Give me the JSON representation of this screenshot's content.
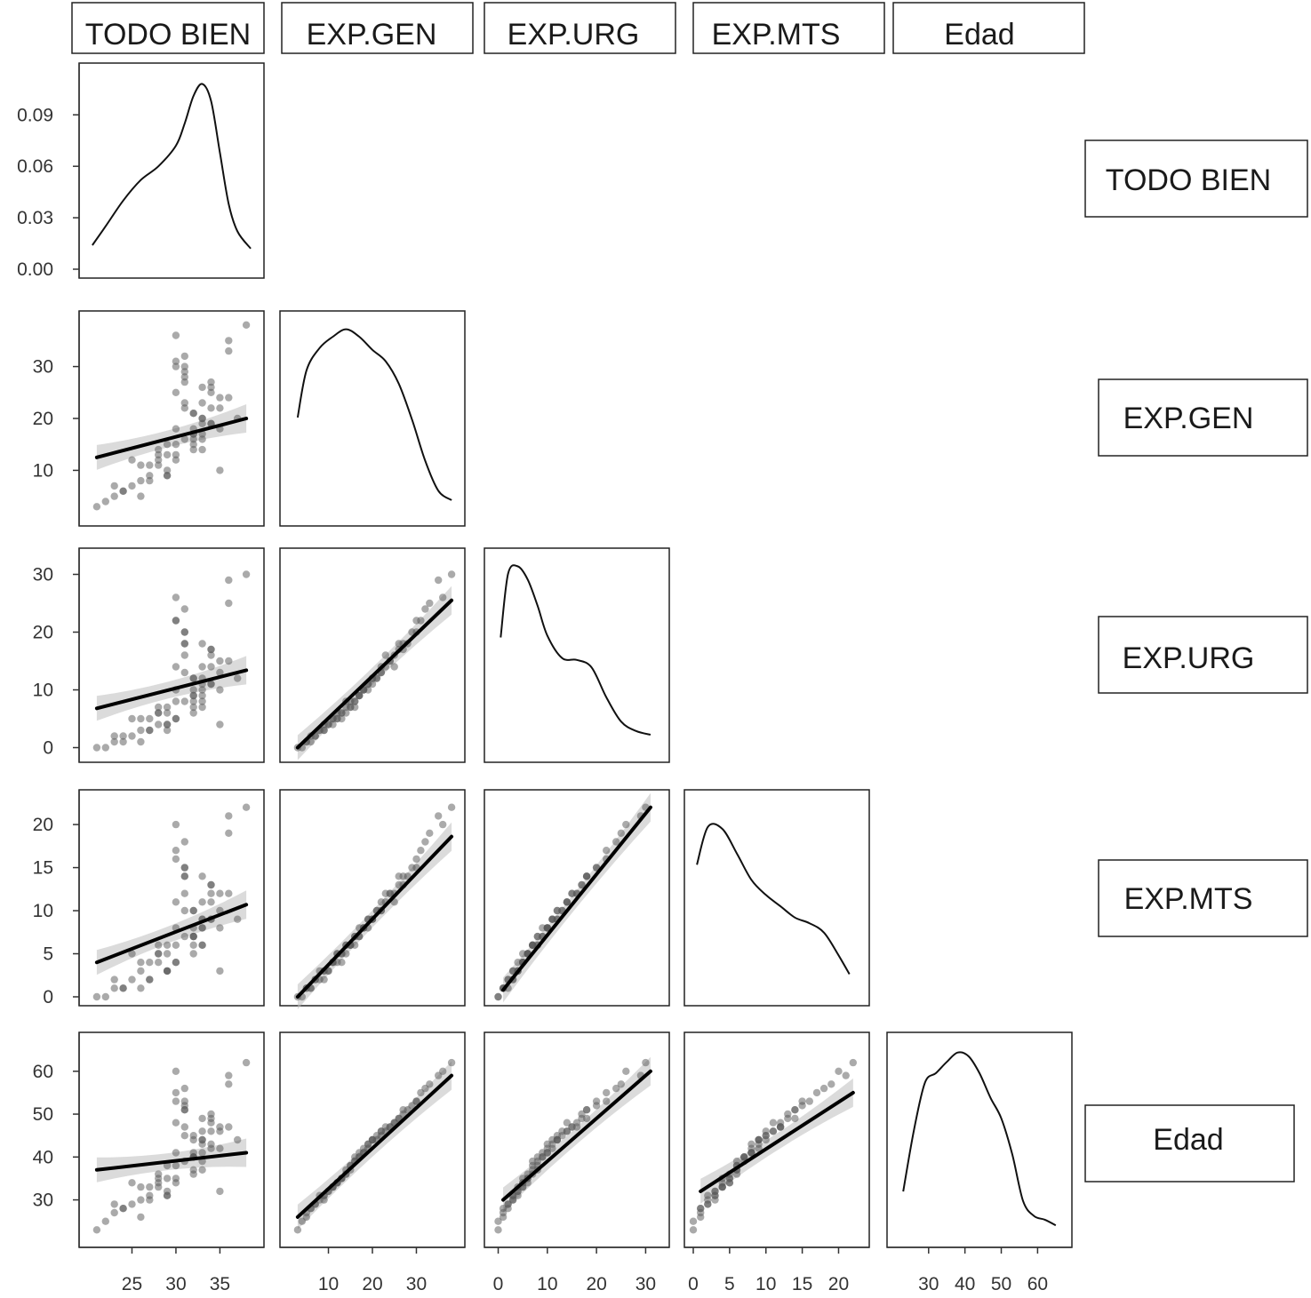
{
  "chart_data": {
    "type": "scatter",
    "variables": [
      "TODO BIEN",
      "EXP.GEN",
      "EXP.URG",
      "EXP.MTS",
      "Edad"
    ],
    "layout": "pairs-matrix-lower",
    "diagonal": "density",
    "lower": "scatter-with-linear-fit",
    "top_strip_labels": [
      "TODO BIEN",
      "EXP.GEN",
      "EXP.URG",
      "EXP.MTS",
      "Edad"
    ],
    "right_strip_labels": [
      "TODO BIEN",
      "EXP.GEN",
      "EXP.URG",
      "EXP.MTS",
      "Edad"
    ],
    "axes": {
      "TODO BIEN": {
        "range": [
          20,
          39
        ],
        "ticks": [
          25,
          30,
          35
        ]
      },
      "EXP.GEN": {
        "range": [
          1,
          39
        ],
        "ticks": [
          10,
          20,
          30
        ]
      },
      "EXP.URG": {
        "range": [
          -1,
          33
        ],
        "ticks": [
          0,
          10,
          20,
          30
        ]
      },
      "EXP.MTS": {
        "range": [
          0,
          23
        ],
        "ticks": [
          0,
          5,
          10,
          15,
          20
        ]
      },
      "Edad": {
        "range": [
          21,
          67
        ],
        "ticks": [
          30,
          40,
          50,
          60
        ]
      }
    },
    "density_axis": {
      "range": [
        0,
        0.115
      ],
      "ticks": [
        0.0,
        0.03,
        0.06,
        0.09
      ],
      "tick_labels": [
        "0.00",
        "0.03",
        "0.06",
        "0.09"
      ]
    },
    "densities": {
      "TODO BIEN": {
        "x": [
          20.5,
          22,
          24,
          26,
          28,
          30,
          31,
          32,
          33,
          34,
          35,
          36,
          37,
          38.5
        ],
        "y": [
          0.014,
          0.025,
          0.04,
          0.052,
          0.06,
          0.072,
          0.085,
          0.101,
          0.108,
          0.098,
          0.068,
          0.038,
          0.022,
          0.012
        ]
      },
      "EXP.GEN": {
        "x": [
          3,
          5,
          8,
          11,
          14,
          17,
          20,
          23,
          26,
          29,
          32,
          35,
          38
        ],
        "y": [
          0.53,
          0.78,
          0.9,
          0.96,
          1.0,
          0.96,
          0.89,
          0.83,
          0.71,
          0.52,
          0.3,
          0.14,
          0.09
        ]
      },
      "EXP.URG": {
        "x": [
          0.5,
          2,
          4,
          6,
          8,
          10,
          13,
          16,
          19,
          22,
          25,
          28,
          31
        ],
        "y": [
          0.62,
          0.96,
          1.0,
          0.93,
          0.79,
          0.63,
          0.51,
          0.5,
          0.46,
          0.3,
          0.17,
          0.12,
          0.1
        ]
      },
      "EXP.MTS": {
        "x": [
          0.5,
          2,
          4,
          6,
          8,
          10,
          12,
          14,
          16,
          18,
          20,
          21.5
        ],
        "y": [
          0.7,
          0.9,
          0.89,
          0.76,
          0.62,
          0.54,
          0.48,
          0.42,
          0.39,
          0.34,
          0.22,
          0.12
        ]
      },
      "Edad": {
        "x": [
          23,
          26,
          29,
          32,
          35,
          38,
          41,
          44,
          47,
          50,
          53,
          56,
          59,
          62,
          65
        ],
        "y": [
          0.25,
          0.58,
          0.83,
          0.88,
          0.94,
          0.99,
          0.97,
          0.88,
          0.75,
          0.64,
          0.45,
          0.2,
          0.12,
          0.1,
          0.07
        ]
      }
    },
    "fits": {
      "EXP.GEN~TODO BIEN": [
        [
          21,
          12.5
        ],
        [
          38,
          20
        ]
      ],
      "EXP.URG~TODO BIEN": [
        [
          21,
          6.8
        ],
        [
          38,
          13.4
        ]
      ],
      "EXP.URG~EXP.GEN": [
        [
          3,
          0
        ],
        [
          38,
          25.5
        ]
      ],
      "EXP.MTS~TODO BIEN": [
        [
          21,
          4
        ],
        [
          38,
          10.7
        ]
      ],
      "EXP.MTS~EXP.GEN": [
        [
          3,
          0
        ],
        [
          38,
          18.6
        ]
      ],
      "EXP.MTS~EXP.URG": [
        [
          1,
          0.8
        ],
        [
          31,
          22
        ]
      ],
      "Edad~TODO BIEN": [
        [
          21,
          37
        ],
        [
          38,
          41
        ]
      ],
      "Edad~EXP.GEN": [
        [
          3,
          26
        ],
        [
          38,
          59
        ]
      ],
      "Edad~EXP.URG": [
        [
          1,
          30
        ],
        [
          31,
          60
        ]
      ],
      "Edad~EXP.MTS": [
        [
          1,
          32
        ],
        [
          22,
          55
        ]
      ]
    },
    "observations": {
      "TODO BIEN": [
        26,
        30,
        33,
        35,
        23,
        31,
        27,
        32,
        29,
        34,
        37,
        24,
        31,
        28,
        33,
        36,
        30,
        32,
        25,
        34,
        29,
        31,
        35,
        22,
        33,
        28,
        30,
        32,
        27,
        34,
        31,
        36,
        26,
        33,
        29,
        30,
        35,
        32,
        24,
        31,
        33,
        28,
        34,
        30,
        32,
        27,
        21,
        38,
        31,
        33,
        29,
        35,
        30,
        32,
        26,
        34,
        31,
        23,
        33,
        28,
        32,
        30,
        36,
        31,
        34,
        29,
        33,
        25,
        32,
        30
      ],
      "EXP.GEN": [
        8,
        25,
        14,
        18,
        5,
        22,
        11,
        16,
        9,
        27,
        20,
        6,
        30,
        13,
        17,
        24,
        12,
        21,
        7,
        19,
        15,
        28,
        10,
        4,
        23,
        14,
        31,
        18,
        9,
        26,
        16,
        33,
        11,
        20,
        13,
        36,
        22,
        17,
        6,
        29,
        19,
        12,
        25,
        15,
        21,
        8,
        3,
        38,
        27,
        16,
        10,
        24,
        18,
        14,
        5,
        22,
        32,
        7,
        20,
        11,
        17,
        13,
        35,
        23,
        19,
        9,
        26,
        12,
        15,
        30
      ],
      "EXP.URG": [
        3,
        14,
        8,
        10,
        1,
        13,
        5,
        8,
        4,
        17,
        12,
        2,
        20,
        6,
        9,
        15,
        5,
        12,
        2,
        11,
        7,
        18,
        4,
        0,
        14,
        7,
        22,
        10,
        3,
        17,
        8,
        25,
        5,
        11,
        6,
        26,
        13,
        9,
        1,
        20,
        10,
        6,
        16,
        8,
        12,
        3,
        0,
        30,
        18,
        7,
        4,
        15,
        10,
        6,
        1,
        14,
        24,
        2,
        12,
        4,
        9,
        5,
        29,
        16,
        11,
        3,
        18,
        5,
        7,
        22
      ],
      "EXP.MTS": [
        3,
        11,
        6,
        8,
        1,
        10,
        4,
        7,
        3,
        13,
        9,
        1,
        15,
        5,
        8,
        12,
        4,
        10,
        2,
        9,
        6,
        14,
        3,
        0,
        11,
        6,
        17,
        8,
        2,
        13,
        7,
        19,
        4,
        9,
        5,
        20,
        10,
        7,
        1,
        15,
        8,
        5,
        12,
        6,
        10,
        2,
        0,
        22,
        14,
        6,
        3,
        12,
        8,
        5,
        1,
        11,
        18,
        2,
        9,
        4,
        7,
        4,
        21,
        12,
        9,
        3,
        14,
        5,
        6,
        16
      ],
      "Edad": [
        30,
        48,
        37,
        42,
        27,
        45,
        33,
        40,
        31,
        50,
        44,
        28,
        53,
        35,
        41,
        47,
        34,
        44,
        29,
        43,
        38,
        51,
        32,
        25,
        46,
        36,
        55,
        41,
        30,
        49,
        39,
        57,
        33,
        44,
        35,
        60,
        46,
        40,
        28,
        52,
        43,
        34,
        48,
        38,
        45,
        31,
        23,
        62,
        51,
        39,
        32,
        47,
        41,
        36,
        26,
        46,
        56,
        29,
        44,
        33,
        40,
        35,
        59,
        47,
        42,
        31,
        49,
        34,
        37,
        53
      ]
    }
  }
}
